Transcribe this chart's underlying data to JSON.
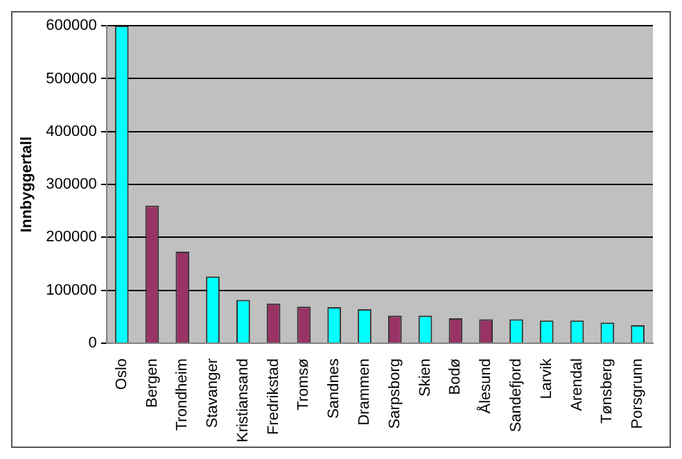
{
  "chart_data": {
    "type": "bar",
    "ylabel": "Innbyggertall",
    "categories": [
      "Oslo",
      "Bergen",
      "Trondheim",
      "Stavanger",
      "Kristiansand",
      "Fredrikstad",
      "Tromsø",
      "Sandnes",
      "Drammen",
      "Sarpsborg",
      "Skien",
      "Bodø",
      "Ålesund",
      "Sandefjord",
      "Larvik",
      "Arendal",
      "Tønsberg",
      "Porsgrunn"
    ],
    "values": [
      600000,
      260000,
      173000,
      126000,
      82000,
      75000,
      69000,
      68000,
      64000,
      52000,
      52000,
      47000,
      45000,
      45000,
      43000,
      43000,
      39000,
      34000
    ],
    "colors": [
      "#00ffff",
      "#993366",
      "#993366",
      "#00ffff",
      "#00ffff",
      "#993366",
      "#993366",
      "#00ffff",
      "#00ffff",
      "#993366",
      "#00ffff",
      "#993366",
      "#993366",
      "#00ffff",
      "#00ffff",
      "#00ffff",
      "#00ffff",
      "#00ffff"
    ],
    "ylim": [
      0,
      600000
    ],
    "yticks": [
      0,
      100000,
      200000,
      300000,
      400000,
      500000,
      600000
    ],
    "grid": "y",
    "legend": false
  }
}
